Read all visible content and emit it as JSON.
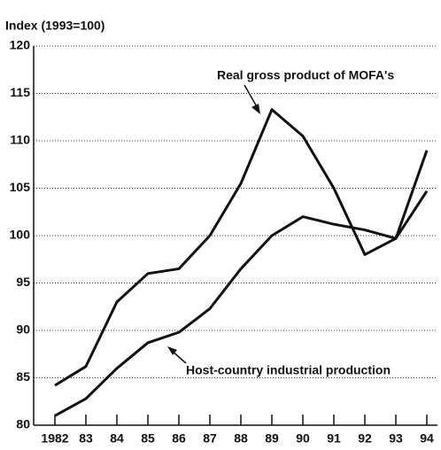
{
  "chart_data": {
    "type": "line",
    "y_axis_label": "Index (1993=100)",
    "categories": [
      "1982",
      "83",
      "84",
      "85",
      "86",
      "87",
      "88",
      "89",
      "90",
      "91",
      "92",
      "93",
      "94"
    ],
    "series": [
      {
        "name": "Real gross product of MOFA's",
        "color": "#111111",
        "values": [
          84.2,
          86.2,
          93,
          96,
          96.5,
          100,
          105.5,
          113.3,
          110.5,
          105,
          98,
          99.7,
          109
        ]
      },
      {
        "name": "Host-country industrial production",
        "color": "#111111",
        "values": [
          81,
          82.8,
          86,
          88.7,
          89.8,
          92.3,
          96.5,
          100,
          102,
          101.2,
          100.6,
          99.7,
          104.7
        ]
      }
    ],
    "ylim": [
      80,
      120
    ],
    "yticks": [
      80,
      85,
      90,
      95,
      100,
      105,
      110,
      115,
      120
    ],
    "grid": true
  }
}
